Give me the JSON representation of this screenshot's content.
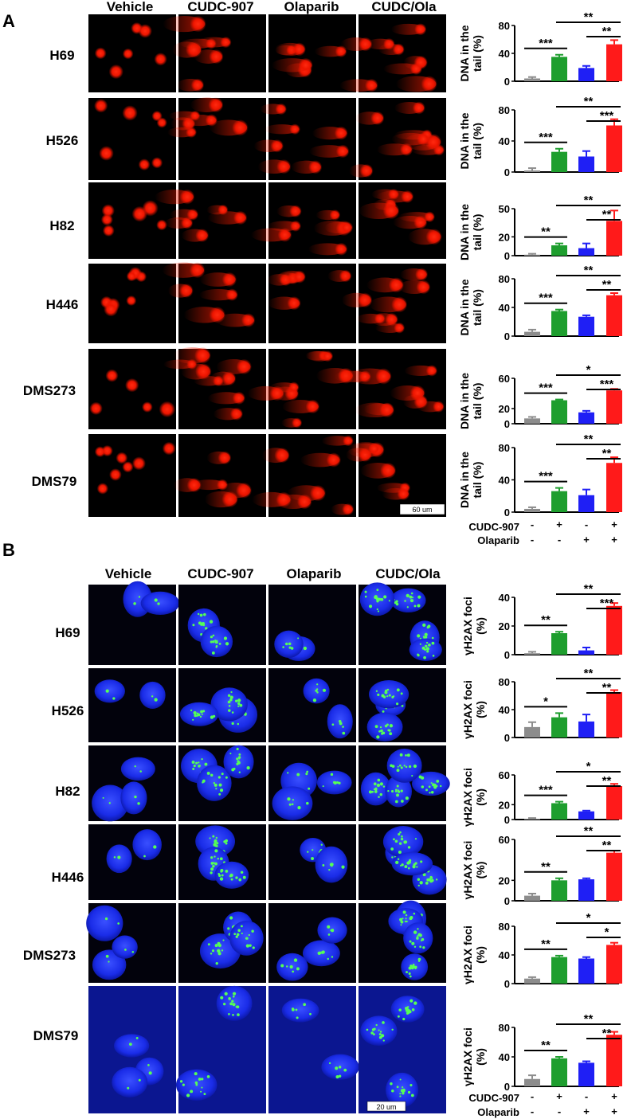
{
  "figure": {
    "panels": [
      {
        "letter": "A",
        "columns": [
          "Vehicle",
          "CUDC-907",
          "Olaparib",
          "CUDC/Ola"
        ],
        "rows": [
          "H69",
          "H526",
          "H82",
          "H446",
          "DMS273",
          "DMS79"
        ],
        "image_color": "#ff1a00",
        "scale_bar": "60 um"
      },
      {
        "letter": "B",
        "columns": [
          "Vehicle",
          "CUDC-907",
          "Olaparib",
          "CUDC/Ola"
        ],
        "rows": [
          "H69",
          "H526",
          "H82",
          "H446",
          "DMS273",
          "DMS79"
        ],
        "image_color": "#1a2cff",
        "foci_color": "#55ff55",
        "scale_bar": "20 um"
      }
    ],
    "treatments": {
      "a": {
        "cudc_label": "CUDC-907",
        "cudc_marks": [
          "-",
          "+",
          "-",
          "+"
        ],
        "ola_label": "Olaparib",
        "ola_marks": [
          "-",
          "-",
          "+",
          "+"
        ]
      },
      "b": {
        "cudc_label": "CUDC-907",
        "cudc_marks": [
          "-",
          "+",
          "-",
          "+"
        ],
        "ola_label": "Olaparib",
        "ola_marks": [
          "-",
          "-",
          "+",
          "+"
        ]
      }
    }
  },
  "colors": {
    "vehicle": "#8c8c8c",
    "cudc": "#1e9e2e",
    "ola": "#1f1ff5",
    "combo": "#ff1a1a"
  },
  "chart_data": [
    {
      "type": "bar",
      "panel": "A",
      "cell_line": "H69",
      "ylabel": [
        "DNA in the",
        "tail (%)"
      ],
      "ylim": [
        0,
        80
      ],
      "yticks": [
        0,
        40,
        80
      ],
      "values": [
        4,
        35,
        19,
        53
      ],
      "errors": [
        2,
        3,
        3,
        6
      ],
      "sig_short": "***",
      "sig_right": "**",
      "sig_long": "**"
    },
    {
      "type": "bar",
      "panel": "A",
      "cell_line": "H526",
      "ylabel": [
        "DNA in the",
        "tail (%)"
      ],
      "ylim": [
        0,
        80
      ],
      "yticks": [
        0,
        40,
        80
      ],
      "values": [
        2,
        26,
        20,
        60
      ],
      "errors": [
        3,
        4,
        7,
        8
      ],
      "sig_short": "***",
      "sig_right": "***",
      "sig_long": "**"
    },
    {
      "type": "bar",
      "panel": "A",
      "cell_line": "H82",
      "ylabel": [
        "DNA in the",
        "tail (%)"
      ],
      "ylim": [
        0,
        50
      ],
      "yticks": [
        0,
        20,
        50
      ],
      "values": [
        1,
        11,
        8,
        37
      ],
      "errors": [
        1,
        2,
        5,
        11
      ],
      "sig_short": "**",
      "sig_right": "**",
      "sig_long": "**"
    },
    {
      "type": "bar",
      "panel": "A",
      "cell_line": "H446",
      "ylabel": [
        "DNA in the",
        "tail (%)"
      ],
      "ylim": [
        0,
        80
      ],
      "yticks": [
        0,
        40,
        80
      ],
      "values": [
        6,
        35,
        27,
        57
      ],
      "errors": [
        3,
        2,
        2,
        3
      ],
      "sig_short": "***",
      "sig_right": "**",
      "sig_long": "**"
    },
    {
      "type": "bar",
      "panel": "A",
      "cell_line": "DMS273",
      "ylabel": [
        "DNA in the",
        "tail (%)"
      ],
      "ylim": [
        0,
        60
      ],
      "yticks": [
        0,
        20,
        60
      ],
      "values": [
        7,
        31,
        15,
        44
      ],
      "errors": [
        2,
        1,
        2,
        2
      ],
      "sig_short": "***",
      "sig_right": "***",
      "sig_long": "*"
    },
    {
      "type": "bar",
      "panel": "A",
      "cell_line": "DMS79",
      "ylabel": [
        "DNA in the",
        "tail (%)"
      ],
      "ylim": [
        0,
        80
      ],
      "yticks": [
        0,
        40,
        80
      ],
      "values": [
        4,
        26,
        21,
        61
      ],
      "errors": [
        2,
        4,
        7,
        7
      ],
      "sig_short": "***",
      "sig_right": "**",
      "sig_long": "**"
    },
    {
      "type": "bar",
      "panel": "B",
      "cell_line": "H69",
      "ylabel": [
        "γH2AX foci",
        "(%)"
      ],
      "ylim": [
        0,
        40
      ],
      "yticks": [
        0,
        20,
        40
      ],
      "values": [
        1,
        15,
        3,
        34
      ],
      "errors": [
        1,
        1,
        2,
        2
      ],
      "sig_short": "**",
      "sig_right": "***",
      "sig_long": "**"
    },
    {
      "type": "bar",
      "panel": "B",
      "cell_line": "H526",
      "ylabel": [
        "γH2AX foci",
        "(%)"
      ],
      "ylim": [
        0,
        80
      ],
      "yticks": [
        0,
        40,
        80
      ],
      "values": [
        15,
        29,
        23,
        65
      ],
      "errors": [
        7,
        6,
        10,
        3
      ],
      "sig_short": "*",
      "sig_right": "**",
      "sig_long": "**"
    },
    {
      "type": "bar",
      "panel": "B",
      "cell_line": "H82",
      "ylabel": [
        "γH2AX foci",
        "(%)"
      ],
      "ylim": [
        0,
        60
      ],
      "yticks": [
        0,
        20,
        60
      ],
      "values": [
        1,
        22,
        11,
        45
      ],
      "errors": [
        1,
        2,
        1,
        3
      ],
      "sig_short": "***",
      "sig_right": "**",
      "sig_long": "*"
    },
    {
      "type": "bar",
      "panel": "B",
      "cell_line": "H446",
      "ylabel": [
        "γH2AX foci",
        "(%)"
      ],
      "ylim": [
        0,
        60
      ],
      "yticks": [
        0,
        20,
        60
      ],
      "values": [
        5,
        20,
        21,
        47
      ],
      "errors": [
        2,
        2,
        1,
        2
      ],
      "sig_short": "**",
      "sig_right": "**",
      "sig_long": "**"
    },
    {
      "type": "bar",
      "panel": "B",
      "cell_line": "DMS273",
      "ylabel": [
        "γH2AX foci",
        "(%)"
      ],
      "ylim": [
        0,
        80
      ],
      "yticks": [
        0,
        40,
        80
      ],
      "values": [
        7,
        37,
        35,
        54
      ],
      "errors": [
        2,
        2,
        2,
        3
      ],
      "sig_short": "**",
      "sig_right": "*",
      "sig_long": "*"
    },
    {
      "type": "bar",
      "panel": "B",
      "cell_line": "DMS79",
      "ylabel": [
        "γH2AX foci",
        "(%)"
      ],
      "ylim": [
        0,
        80
      ],
      "yticks": [
        0,
        40,
        80
      ],
      "values": [
        10,
        38,
        32,
        70
      ],
      "errors": [
        5,
        2,
        2,
        4
      ],
      "sig_short": "**",
      "sig_right": "**",
      "sig_long": "**"
    }
  ]
}
